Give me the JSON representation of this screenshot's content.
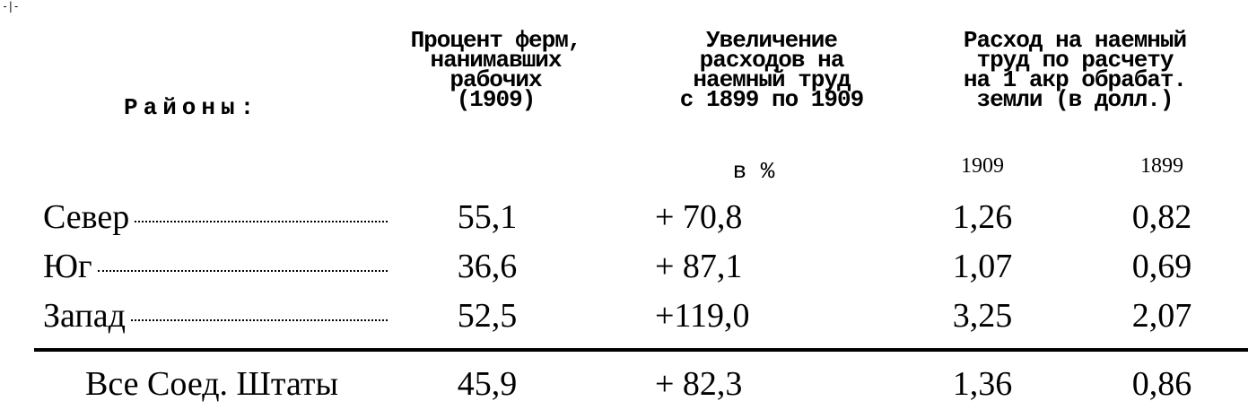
{
  "corner_mark": "-|-",
  "header": {
    "regions_label": "Районы:",
    "col1": "Процент ферм,\nнанимавших\nрабочих\n(1909)",
    "col2": "Увеличение\nрасходов на\nнаемный труд\nс 1899 по 1909",
    "col2_unit": "в %",
    "col3": "Расход на наемный\nтруд по расчету\nна 1 акр обрабат.\nземли (в долл.)",
    "col3_year_a": "1909",
    "col3_year_b": "1899"
  },
  "rows": [
    {
      "region": "Север",
      "pct_farms": "55,1",
      "increase": "+ 70,8",
      "exp_1909": "1,26",
      "exp_1899": "0,82"
    },
    {
      "region": "Юг",
      "pct_farms": "36,6",
      "increase": "+ 87,1",
      "exp_1909": "1,07",
      "exp_1899": "0,69"
    },
    {
      "region": "Запад",
      "pct_farms": "52,5",
      "increase": "+119,0",
      "exp_1909": "3,25",
      "exp_1899": "2,07"
    }
  ],
  "total": {
    "region": "Все Соед. Штаты",
    "pct_farms": "45,9",
    "increase": "+ 82,3",
    "exp_1909": "1,36",
    "exp_1899": "0,86"
  }
}
